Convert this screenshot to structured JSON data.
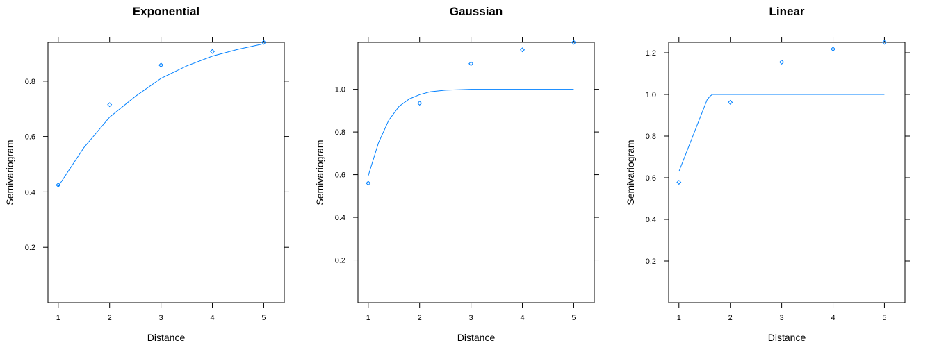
{
  "chart_data": [
    {
      "type": "scatter",
      "title": "Exponential",
      "xlabel": "Distance",
      "ylabel": "Semivariogram",
      "xlim": [
        0.8,
        5.4
      ],
      "ylim": [
        0.0,
        0.94
      ],
      "xticks": [
        1,
        2,
        3,
        4,
        5
      ],
      "xtick_labels": [
        "1",
        "2",
        "3",
        "4",
        "5"
      ],
      "yticks": [
        0.2,
        0.4,
        0.6,
        0.8
      ],
      "ytick_labels": [
        "0.2",
        "0.4",
        "0.6",
        "0.8"
      ],
      "points": {
        "x": [
          1,
          2,
          3,
          4,
          5
        ],
        "y": [
          0.425,
          0.715,
          0.858,
          0.907,
          0.94
        ]
      },
      "fitted_line": {
        "x": [
          1.0,
          1.5,
          2.0,
          2.5,
          3.0,
          3.5,
          4.0,
          4.5,
          5.0
        ],
        "y": [
          0.42,
          0.56,
          0.67,
          0.745,
          0.81,
          0.855,
          0.89,
          0.915,
          0.935
        ]
      },
      "color": "#0080ff"
    },
    {
      "type": "scatter",
      "title": "Gaussian",
      "xlabel": "Distance",
      "ylabel": "Semivariogram",
      "xlim": [
        0.8,
        5.4
      ],
      "ylim": [
        0.0,
        1.22
      ],
      "xticks": [
        1,
        2,
        3,
        4,
        5
      ],
      "xtick_labels": [
        "1",
        "2",
        "3",
        "4",
        "5"
      ],
      "yticks": [
        0.2,
        0.4,
        0.6,
        0.8,
        1.0
      ],
      "ytick_labels": [
        "0.2",
        "0.4",
        "0.6",
        "0.8",
        "1.0"
      ],
      "points": {
        "x": [
          1,
          2,
          3,
          4,
          5
        ],
        "y": [
          0.56,
          0.935,
          1.12,
          1.185,
          1.22
        ]
      },
      "fitted_line": {
        "x": [
          1.0,
          1.2,
          1.4,
          1.6,
          1.8,
          2.0,
          2.2,
          2.5,
          3.0,
          4.0,
          5.0
        ],
        "y": [
          0.595,
          0.75,
          0.855,
          0.92,
          0.955,
          0.975,
          0.988,
          0.996,
          1.0,
          1.0,
          1.0
        ]
      },
      "color": "#0080ff"
    },
    {
      "type": "scatter",
      "title": "Linear",
      "xlabel": "Distance",
      "ylabel": "Semivariogram",
      "xlim": [
        0.8,
        5.4
      ],
      "ylim": [
        0.0,
        1.25
      ],
      "xticks": [
        1,
        2,
        3,
        4,
        5
      ],
      "xtick_labels": [
        "1",
        "2",
        "3",
        "4",
        "5"
      ],
      "yticks": [
        0.2,
        0.4,
        0.6,
        0.8,
        1.0,
        1.2
      ],
      "ytick_labels": [
        "0.2",
        "0.4",
        "0.6",
        "0.8",
        "1.0",
        "1.2"
      ],
      "points": {
        "x": [
          1,
          2,
          3,
          4,
          5
        ],
        "y": [
          0.578,
          0.962,
          1.155,
          1.218,
          1.25
        ]
      },
      "fitted_line": {
        "x": [
          1.0,
          1.55,
          1.6,
          1.65,
          5.0
        ],
        "y": [
          0.63,
          0.975,
          0.99,
          1.0,
          1.0
        ]
      },
      "color": "#0080ff"
    }
  ]
}
